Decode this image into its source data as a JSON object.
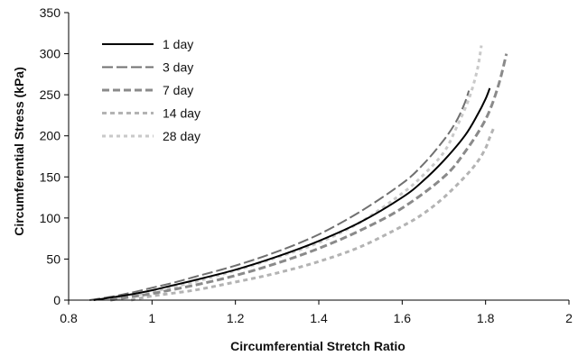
{
  "chart_data": {
    "type": "line",
    "xlabel": "Circumferential Stretch Ratio",
    "ylabel": "Circumferential Stress (kPa)",
    "xlim": [
      0.8,
      2
    ],
    "ylim": [
      0,
      350
    ],
    "xticks": [
      0.8,
      1,
      1.2,
      1.4,
      1.6,
      1.8,
      2
    ],
    "yticks": [
      0,
      50,
      100,
      150,
      200,
      250,
      300,
      350
    ],
    "xtick_labels": [
      "0.8",
      "1",
      "1.2",
      "1.4",
      "1.6",
      "1.8",
      "2"
    ],
    "ytick_labels": [
      "0",
      "50",
      "100",
      "150",
      "200",
      "250",
      "300",
      "350"
    ],
    "grid": false,
    "legend_position": "top-left",
    "series": [
      {
        "name": "1 day",
        "color": "#000000",
        "style": "solid",
        "x": [
          0.86,
          0.9,
          0.95,
          1.0,
          1.05,
          1.1,
          1.2,
          1.3,
          1.4,
          1.5,
          1.6,
          1.65,
          1.7,
          1.75,
          1.78,
          1.8,
          1.81
        ],
        "y": [
          0,
          3,
          7,
          12,
          18,
          24,
          37,
          53,
          72,
          95,
          125,
          145,
          170,
          200,
          225,
          245,
          258
        ]
      },
      {
        "name": "3 day",
        "color": "#707070",
        "style": "dash",
        "x": [
          0.85,
          0.9,
          0.95,
          1.0,
          1.05,
          1.1,
          1.2,
          1.3,
          1.4,
          1.5,
          1.6,
          1.65,
          1.7,
          1.73,
          1.75,
          1.76
        ],
        "y": [
          0,
          4,
          9,
          15,
          21,
          28,
          42,
          59,
          80,
          108,
          142,
          165,
          195,
          218,
          240,
          255
        ]
      },
      {
        "name": "7 day",
        "color": "#8a8a8a",
        "style": "dash",
        "x": [
          0.9,
          0.95,
          1.0,
          1.1,
          1.2,
          1.3,
          1.4,
          1.5,
          1.6,
          1.7,
          1.75,
          1.8,
          1.83,
          1.85
        ],
        "y": [
          0,
          4,
          8,
          18,
          30,
          45,
          63,
          85,
          112,
          150,
          180,
          220,
          260,
          300
        ]
      },
      {
        "name": "14 day",
        "color": "#b3b3b3",
        "style": "dash",
        "x": [
          0.95,
          1.0,
          1.1,
          1.2,
          1.3,
          1.4,
          1.5,
          1.6,
          1.65,
          1.7,
          1.75,
          1.78,
          1.8,
          1.81,
          1.82
        ],
        "y": [
          0,
          5,
          12,
          22,
          33,
          47,
          65,
          90,
          105,
          125,
          150,
          168,
          185,
          198,
          210
        ]
      },
      {
        "name": "28 day",
        "color": "#c9c9c9",
        "style": "dash",
        "x": [
          0.9,
          0.95,
          1.0,
          1.1,
          1.2,
          1.3,
          1.4,
          1.5,
          1.6,
          1.65,
          1.7,
          1.73,
          1.76,
          1.78,
          1.79
        ],
        "y": [
          0,
          5,
          10,
          22,
          36,
          52,
          70,
          95,
          130,
          152,
          180,
          210,
          245,
          280,
          310
        ]
      }
    ]
  }
}
